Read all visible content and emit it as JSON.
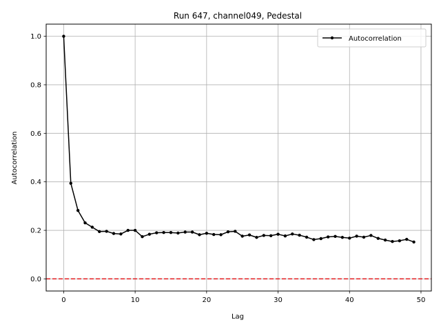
{
  "chart_data": {
    "type": "line",
    "title": "Run 647, channel049, Pedestal",
    "xlabel": "Lag",
    "ylabel": "Autocorrelation",
    "xlim": [
      -2.45,
      51.45
    ],
    "ylim": [
      -0.05,
      1.05
    ],
    "xticks": [
      0,
      10,
      20,
      30,
      40,
      50
    ],
    "xtick_labels": [
      "0",
      "10",
      "20",
      "30",
      "40",
      "50"
    ],
    "yticks": [
      0.0,
      0.2,
      0.4,
      0.6,
      0.8,
      1.0
    ],
    "ytick_labels": [
      "0.0",
      "0.2",
      "0.4",
      "0.6",
      "0.8",
      "1.0"
    ],
    "grid": true,
    "legend_position": "top-right",
    "series": [
      {
        "name": "Autocorrelation",
        "color": "#000000",
        "marker": "circle",
        "x": [
          0,
          1,
          2,
          3,
          4,
          5,
          6,
          7,
          8,
          9,
          10,
          11,
          12,
          13,
          14,
          15,
          16,
          17,
          18,
          19,
          20,
          21,
          22,
          23,
          24,
          25,
          26,
          27,
          28,
          29,
          30,
          31,
          32,
          33,
          34,
          35,
          36,
          37,
          38,
          39,
          40,
          41,
          42,
          43,
          44,
          45,
          46,
          47,
          48,
          49
        ],
        "values": [
          1.0,
          0.394,
          0.282,
          0.231,
          0.213,
          0.195,
          0.196,
          0.187,
          0.185,
          0.2,
          0.2,
          0.174,
          0.184,
          0.19,
          0.191,
          0.191,
          0.189,
          0.193,
          0.193,
          0.182,
          0.188,
          0.183,
          0.182,
          0.194,
          0.196,
          0.176,
          0.181,
          0.171,
          0.179,
          0.178,
          0.184,
          0.177,
          0.185,
          0.18,
          0.172,
          0.162,
          0.166,
          0.173,
          0.175,
          0.171,
          0.168,
          0.176,
          0.172,
          0.179,
          0.167,
          0.16,
          0.154,
          0.157,
          0.163,
          0.152
        ]
      }
    ],
    "reference_line": {
      "y": 0.0,
      "color": "#e31a1c",
      "style": "dashed"
    }
  }
}
